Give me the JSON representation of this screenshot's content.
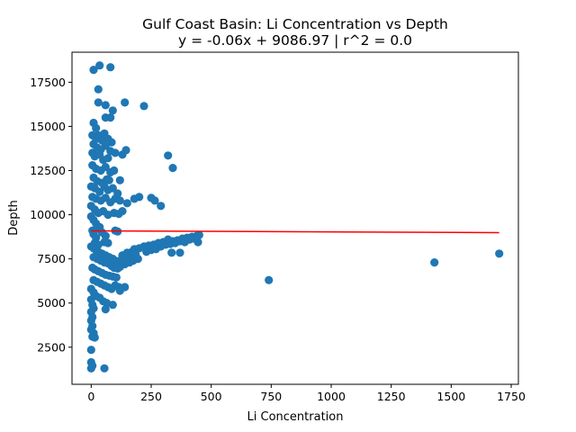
{
  "chart_data": {
    "type": "scatter",
    "title": "Gulf Coast Basin: Li Concentration vs Depth",
    "subtitle": "y = -0.06x + 9086.97 | r^2 = 0.0",
    "xlabel": "Li Concentration",
    "ylabel": "Depth",
    "xlim": [
      -80,
      1780
    ],
    "ylim": [
      400,
      19200
    ],
    "xticks": [
      0,
      250,
      500,
      750,
      1000,
      1250,
      1500,
      1750
    ],
    "yticks": [
      2500,
      5000,
      7500,
      10000,
      12500,
      15000,
      17500
    ],
    "grid": false,
    "legend": "none",
    "colors": {
      "points": "#1f77b4",
      "fit_line": "#ff0000",
      "axes": "#000000",
      "background": "#ffffff"
    },
    "fit": {
      "slope": -0.06,
      "intercept": 9086.97,
      "r2": 0.0,
      "x_range": [
        0,
        1700
      ]
    },
    "points": [
      [
        10,
        18200
      ],
      [
        35,
        18450
      ],
      [
        80,
        18350
      ],
      [
        30,
        17100
      ],
      [
        140,
        16350
      ],
      [
        220,
        16150
      ],
      [
        30,
        16350
      ],
      [
        60,
        16200
      ],
      [
        90,
        15900
      ],
      [
        60,
        15500
      ],
      [
        80,
        15500
      ],
      [
        10,
        15200
      ],
      [
        20,
        14900
      ],
      [
        5,
        14500
      ],
      [
        20,
        14300
      ],
      [
        30,
        14500
      ],
      [
        45,
        14200
      ],
      [
        55,
        14600
      ],
      [
        70,
        14300
      ],
      [
        85,
        14100
      ],
      [
        10,
        14000
      ],
      [
        25,
        13800
      ],
      [
        40,
        13700
      ],
      [
        60,
        13900
      ],
      [
        80,
        13600
      ],
      [
        5,
        13500
      ],
      [
        15,
        13300
      ],
      [
        35,
        13400
      ],
      [
        50,
        13100
      ],
      [
        70,
        13200
      ],
      [
        100,
        13500
      ],
      [
        130,
        13400
      ],
      [
        145,
        13650
      ],
      [
        320,
        13350
      ],
      [
        340,
        12650
      ],
      [
        5,
        12800
      ],
      [
        20,
        12600
      ],
      [
        40,
        12500
      ],
      [
        60,
        12700
      ],
      [
        80,
        12400
      ],
      [
        95,
        12500
      ],
      [
        10,
        12100
      ],
      [
        25,
        11900
      ],
      [
        45,
        11800
      ],
      [
        65,
        12000
      ],
      [
        75,
        11950
      ],
      [
        120,
        11950
      ],
      [
        0,
        11600
      ],
      [
        15,
        11500
      ],
      [
        35,
        11300
      ],
      [
        55,
        11600
      ],
      [
        70,
        11400
      ],
      [
        90,
        11500
      ],
      [
        110,
        11200
      ],
      [
        5,
        11000
      ],
      [
        20,
        10900
      ],
      [
        40,
        10800
      ],
      [
        60,
        10950
      ],
      [
        80,
        10700
      ],
      [
        100,
        10900
      ],
      [
        120,
        10800
      ],
      [
        150,
        10650
      ],
      [
        180,
        10900
      ],
      [
        200,
        11000
      ],
      [
        250,
        10950
      ],
      [
        265,
        10800
      ],
      [
        290,
        10500
      ],
      [
        0,
        10500
      ],
      [
        15,
        10300
      ],
      [
        30,
        10100
      ],
      [
        50,
        10200
      ],
      [
        70,
        10000
      ],
      [
        95,
        10100
      ],
      [
        115,
        10050
      ],
      [
        130,
        10200
      ],
      [
        0,
        9900
      ],
      [
        10,
        9700
      ],
      [
        20,
        9500
      ],
      [
        35,
        9300
      ],
      [
        5,
        9100
      ],
      [
        10,
        8900
      ],
      [
        20,
        8700
      ],
      [
        30,
        9200
      ],
      [
        45,
        9000
      ],
      [
        60,
        8800
      ],
      [
        100,
        9100
      ],
      [
        110,
        9050
      ],
      [
        15,
        8400
      ],
      [
        30,
        8300
      ],
      [
        55,
        8450
      ],
      [
        70,
        8400
      ],
      [
        0,
        8200
      ],
      [
        10,
        8100
      ],
      [
        20,
        8000
      ],
      [
        30,
        7900
      ],
      [
        45,
        7800
      ],
      [
        60,
        7700
      ],
      [
        75,
        7600
      ],
      [
        90,
        7500
      ],
      [
        100,
        7400
      ],
      [
        110,
        7350
      ],
      [
        125,
        7450
      ],
      [
        140,
        7600
      ],
      [
        155,
        7800
      ],
      [
        170,
        7900
      ],
      [
        180,
        8050
      ],
      [
        200,
        8100
      ],
      [
        220,
        8200
      ],
      [
        240,
        8250
      ],
      [
        260,
        8300
      ],
      [
        280,
        8400
      ],
      [
        300,
        8450
      ],
      [
        320,
        8600
      ],
      [
        340,
        8500
      ],
      [
        360,
        8550
      ],
      [
        380,
        8650
      ],
      [
        400,
        8700
      ],
      [
        420,
        8750
      ],
      [
        440,
        8800
      ],
      [
        450,
        8850
      ],
      [
        230,
        7900
      ],
      [
        250,
        8000
      ],
      [
        270,
        8050
      ],
      [
        290,
        8200
      ],
      [
        310,
        8300
      ],
      [
        330,
        8350
      ],
      [
        350,
        8400
      ],
      [
        370,
        8500
      ],
      [
        390,
        8450
      ],
      [
        410,
        8600
      ],
      [
        430,
        8650
      ],
      [
        445,
        8450
      ],
      [
        335,
        7850
      ],
      [
        370,
        7850
      ],
      [
        10,
        7600
      ],
      [
        25,
        7500
      ],
      [
        40,
        7400
      ],
      [
        55,
        7300
      ],
      [
        70,
        7250
      ],
      [
        85,
        7100
      ],
      [
        95,
        7000
      ],
      [
        110,
        6950
      ],
      [
        120,
        7050
      ],
      [
        140,
        7200
      ],
      [
        160,
        7300
      ],
      [
        175,
        7400
      ],
      [
        130,
        7700
      ],
      [
        150,
        7850
      ],
      [
        165,
        7600
      ],
      [
        185,
        7750
      ],
      [
        195,
        7500
      ],
      [
        5,
        7000
      ],
      [
        15,
        6900
      ],
      [
        30,
        6800
      ],
      [
        45,
        6700
      ],
      [
        60,
        6600
      ],
      [
        75,
        6550
      ],
      [
        90,
        6500
      ],
      [
        105,
        6450
      ],
      [
        10,
        6300
      ],
      [
        25,
        6200
      ],
      [
        40,
        6100
      ],
      [
        55,
        6000
      ],
      [
        70,
        5900
      ],
      [
        85,
        5800
      ],
      [
        100,
        6000
      ],
      [
        115,
        5900
      ],
      [
        140,
        5900
      ],
      [
        120,
        5700
      ],
      [
        0,
        5800
      ],
      [
        10,
        5600
      ],
      [
        20,
        5400
      ],
      [
        35,
        5300
      ],
      [
        50,
        5100
      ],
      [
        65,
        5000
      ],
      [
        90,
        4900
      ],
      [
        60,
        4650
      ],
      [
        0,
        5200
      ],
      [
        5,
        4900
      ],
      [
        10,
        4700
      ],
      [
        0,
        4500
      ],
      [
        5,
        4200
      ],
      [
        0,
        4000
      ],
      [
        5,
        3700
      ],
      [
        0,
        3500
      ],
      [
        10,
        3300
      ],
      [
        5,
        3100
      ],
      [
        15,
        3050
      ],
      [
        0,
        2350
      ],
      [
        0,
        1650
      ],
      [
        5,
        1450
      ],
      [
        0,
        1300
      ],
      [
        55,
        1300
      ],
      [
        740,
        6300
      ],
      [
        1430,
        7300
      ],
      [
        1700,
        7800
      ]
    ]
  }
}
